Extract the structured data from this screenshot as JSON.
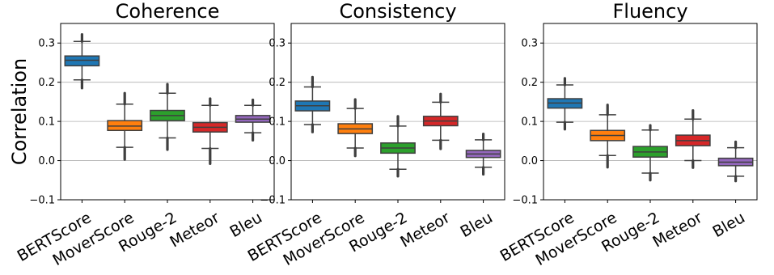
{
  "chart_data": {
    "type": "box",
    "ylabel": "Correlation",
    "ylim": [
      -0.1,
      0.35
    ],
    "yticks": [
      -0.1,
      0.0,
      0.1,
      0.2,
      0.3
    ],
    "ytick_labels": [
      "−0.1",
      "0.0",
      "0.1",
      "0.2",
      "0.3"
    ],
    "grid": "horizontal",
    "categories": [
      "BERTScore",
      "MoverScore",
      "Rouge-2",
      "Meteor",
      "Bleu"
    ],
    "colors": [
      "#1f77b4",
      "#ff7f0e",
      "#2ca02c",
      "#d62728",
      "#9467bd"
    ],
    "panels": [
      {
        "title": "Coherence",
        "boxes": [
          {
            "q1": 0.242,
            "median": 0.256,
            "q3": 0.267,
            "whisker_low": 0.206,
            "whisker_high": 0.304,
            "out_low": 0.185,
            "out_high": 0.322
          },
          {
            "q1": 0.077,
            "median": 0.088,
            "q3": 0.102,
            "whisker_low": 0.034,
            "whisker_high": 0.144,
            "out_low": 0.003,
            "out_high": 0.172
          },
          {
            "q1": 0.102,
            "median": 0.115,
            "q3": 0.128,
            "whisker_low": 0.058,
            "whisker_high": 0.172,
            "out_low": 0.028,
            "out_high": 0.195
          },
          {
            "q1": 0.073,
            "median": 0.085,
            "q3": 0.097,
            "whisker_low": 0.031,
            "whisker_high": 0.141,
            "out_low": -0.008,
            "out_high": 0.158
          },
          {
            "q1": 0.098,
            "median": 0.106,
            "q3": 0.115,
            "whisker_low": 0.071,
            "whisker_high": 0.141,
            "out_low": 0.052,
            "out_high": 0.155
          }
        ]
      },
      {
        "title": "Consistency",
        "boxes": [
          {
            "q1": 0.127,
            "median": 0.14,
            "q3": 0.152,
            "whisker_low": 0.092,
            "whisker_high": 0.188,
            "out_low": 0.073,
            "out_high": 0.213
          },
          {
            "q1": 0.069,
            "median": 0.081,
            "q3": 0.094,
            "whisker_low": 0.032,
            "whisker_high": 0.133,
            "out_low": 0.012,
            "out_high": 0.156
          },
          {
            "q1": 0.019,
            "median": 0.032,
            "q3": 0.045,
            "whisker_low": -0.022,
            "whisker_high": 0.088,
            "out_low": -0.04,
            "out_high": 0.113
          },
          {
            "q1": 0.089,
            "median": 0.101,
            "q3": 0.113,
            "whisker_low": 0.052,
            "whisker_high": 0.149,
            "out_low": 0.03,
            "out_high": 0.17
          },
          {
            "q1": 0.008,
            "median": 0.017,
            "q3": 0.026,
            "whisker_low": -0.017,
            "whisker_high": 0.053,
            "out_low": -0.035,
            "out_high": 0.068
          }
        ]
      },
      {
        "title": "Fluency",
        "boxes": [
          {
            "q1": 0.134,
            "median": 0.147,
            "q3": 0.158,
            "whisker_low": 0.098,
            "whisker_high": 0.193,
            "out_low": 0.08,
            "out_high": 0.21
          },
          {
            "q1": 0.051,
            "median": 0.064,
            "q3": 0.077,
            "whisker_low": 0.013,
            "whisker_high": 0.117,
            "out_low": -0.017,
            "out_high": 0.142
          },
          {
            "q1": 0.009,
            "median": 0.022,
            "q3": 0.036,
            "whisker_low": -0.032,
            "whisker_high": 0.078,
            "out_low": -0.05,
            "out_high": 0.09
          },
          {
            "q1": 0.038,
            "median": 0.051,
            "q3": 0.065,
            "whisker_low": 0.0,
            "whisker_high": 0.106,
            "out_low": -0.018,
            "out_high": 0.128
          },
          {
            "q1": -0.013,
            "median": -0.004,
            "q3": 0.006,
            "whisker_low": -0.04,
            "whisker_high": 0.033,
            "out_low": -0.052,
            "out_high": 0.048
          }
        ]
      }
    ]
  }
}
